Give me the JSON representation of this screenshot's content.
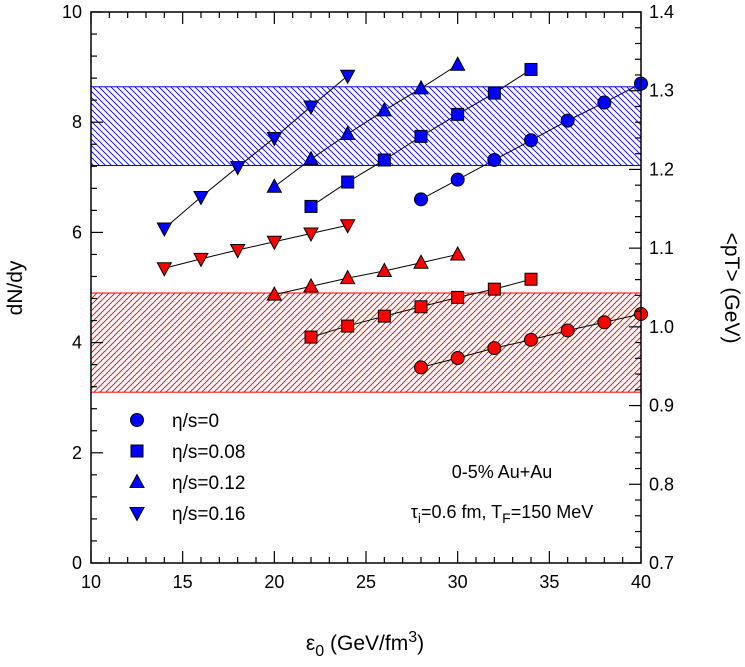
{
  "chart_data": {
    "type": "scatter",
    "xlabel": "ε0 (GeV/fm3)",
    "ylabel_left": "dN/dy",
    "ylabel_right": "<pT> (GeV)",
    "xlim": [
      10,
      40
    ],
    "ylim_left": [
      0,
      10
    ],
    "ylim_right": [
      0.7,
      1.4
    ],
    "x_ticks": [
      "10",
      "15",
      "20",
      "25",
      "30",
      "35",
      "40"
    ],
    "y_left_ticks": [
      "0",
      "2",
      "4",
      "6",
      "8",
      "10"
    ],
    "y_right_ticks": [
      "0.7",
      "0.8",
      "0.9",
      "1.0",
      "1.1",
      "1.2",
      "1.3",
      "1.4"
    ],
    "colors": {
      "dNdy": "#ff0000",
      "pT": "#0000ff",
      "band_red": "#ff0000",
      "band_blue": "#0000ff"
    },
    "bands": [
      {
        "name": "dN/dy experimental band",
        "axis": "left",
        "y": [
          3.1,
          4.9
        ],
        "color": "#ff0000"
      },
      {
        "name": "<pT> experimental band",
        "axis": "right",
        "y": [
          1.205,
          1.305
        ],
        "color": "#0000ff"
      }
    ],
    "legend": {
      "placement": "bottom-left",
      "entries": [
        {
          "label": "η/s=0",
          "marker": "circle"
        },
        {
          "label": "η/s=0.08",
          "marker": "square"
        },
        {
          "label": "η/s=0.12",
          "marker": "triangle-up"
        },
        {
          "label": "η/s=0.16",
          "marker": "triangle-down"
        }
      ]
    },
    "annotations": {
      "line1": "0-5% Au+Au",
      "line2": "τi=0.6 fm, TF=150 MeV"
    },
    "series": [
      {
        "marker": "circle",
        "quantity": "dN/dy",
        "axis": "left",
        "x": [
          28,
          30,
          32,
          34,
          36,
          38,
          40
        ],
        "y": [
          3.55,
          3.72,
          3.9,
          4.05,
          4.22,
          4.37,
          4.52
        ]
      },
      {
        "marker": "square",
        "quantity": "dN/dy",
        "axis": "left",
        "x": [
          22,
          24,
          26,
          28,
          30,
          32,
          34
        ],
        "y": [
          4.1,
          4.3,
          4.48,
          4.65,
          4.82,
          4.97,
          5.15
        ]
      },
      {
        "marker": "triangle-up",
        "quantity": "dN/dy",
        "axis": "left",
        "x": [
          20,
          22,
          24,
          26,
          28,
          30
        ],
        "y": [
          4.87,
          5.02,
          5.17,
          5.3,
          5.45,
          5.6
        ]
      },
      {
        "marker": "triangle-down",
        "quantity": "dN/dy",
        "axis": "left",
        "x": [
          14,
          16,
          18,
          20,
          22,
          24
        ],
        "y": [
          5.35,
          5.52,
          5.68,
          5.83,
          5.98,
          6.13
        ]
      },
      {
        "marker": "circle",
        "quantity": "<pT>",
        "axis": "right",
        "x": [
          28,
          30,
          32,
          34,
          36,
          38,
          40
        ],
        "y": [
          1.162,
          1.187,
          1.212,
          1.237,
          1.262,
          1.285,
          1.309
        ]
      },
      {
        "marker": "square",
        "quantity": "<pT>",
        "axis": "right",
        "x": [
          22,
          24,
          26,
          28,
          30,
          32,
          34
        ],
        "y": [
          1.153,
          1.184,
          1.212,
          1.242,
          1.27,
          1.297,
          1.327
        ]
      },
      {
        "marker": "triangle-up",
        "quantity": "<pT>",
        "axis": "right",
        "x": [
          20,
          22,
          24,
          26,
          28,
          30
        ],
        "y": [
          1.178,
          1.213,
          1.245,
          1.275,
          1.303,
          1.333
        ]
      },
      {
        "marker": "triangle-down",
        "quantity": "<pT>",
        "axis": "right",
        "x": [
          14,
          16,
          18,
          20,
          22,
          24
        ],
        "y": [
          1.125,
          1.165,
          1.203,
          1.24,
          1.28,
          1.319
        ]
      }
    ]
  }
}
